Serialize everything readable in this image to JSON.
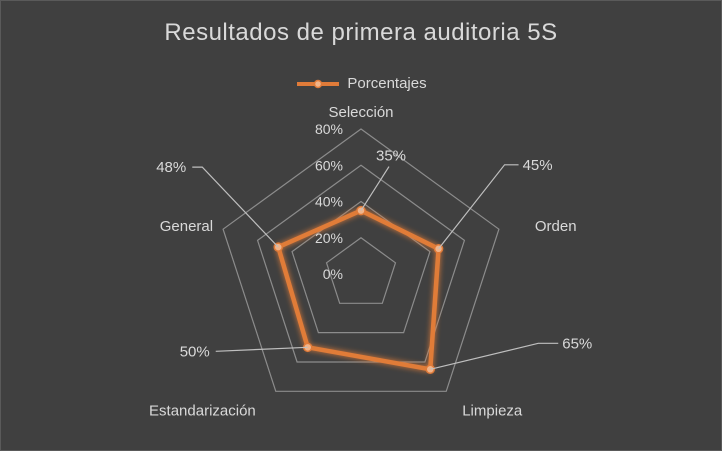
{
  "chart_data": {
    "type": "radar",
    "title": "Resultados de primera auditoria 5S",
    "categories": [
      "Selección",
      "Orden",
      "Limpieza",
      "Estandarización",
      "General"
    ],
    "series": [
      {
        "name": "Porcentajes",
        "values": [
          35,
          45,
          65,
          50,
          48
        ],
        "value_labels": [
          "35%",
          "45%",
          "65%",
          "50%",
          "48%"
        ],
        "color": "#e07b39"
      }
    ],
    "rlim": [
      0,
      80
    ],
    "ticks": [
      0,
      20,
      40,
      60,
      80
    ],
    "tick_labels": [
      "0%",
      "20%",
      "40%",
      "60%",
      "80%"
    ],
    "legend_position": "top",
    "grid": true,
    "colors": {
      "background": "#404040",
      "grid": "#8c8c8c",
      "text": "#d9d9d9",
      "series": "#e07b39",
      "leader": "#bfbfbf"
    }
  }
}
